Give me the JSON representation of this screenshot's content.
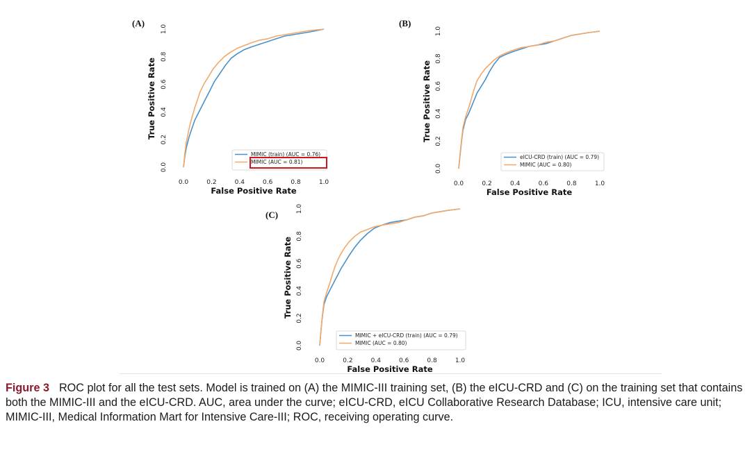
{
  "chart_data": [
    {
      "type": "line",
      "panel": "(A)",
      "xlabel": "False Positive Rate",
      "ylabel": "True Positive Rate",
      "xlim": [
        0,
        1
      ],
      "ylim": [
        0,
        1
      ],
      "xticks": [
        "0.0",
        "0.2",
        "0.4",
        "0.6",
        "0.8",
        "1.0"
      ],
      "yticks": [
        "0.0",
        "0.2",
        "0.4",
        "0.6",
        "0.8",
        "1.0"
      ],
      "grid": false,
      "legend_position": "bottom-right",
      "highlighted_legend_entry": 1,
      "series": [
        {
          "name": "MIMIC (train) (AUC = 0.76)",
          "color": "#4a90c8",
          "x": [
            0,
            0.01,
            0.02,
            0.04,
            0.06,
            0.08,
            0.1,
            0.13,
            0.16,
            0.19,
            0.22,
            0.26,
            0.3,
            0.34,
            0.38,
            0.43,
            0.48,
            0.54,
            0.6,
            0.66,
            0.72,
            0.78,
            0.84,
            0.9,
            0.95,
            1.0
          ],
          "y": [
            0,
            0.08,
            0.14,
            0.22,
            0.28,
            0.34,
            0.38,
            0.44,
            0.5,
            0.56,
            0.62,
            0.68,
            0.74,
            0.79,
            0.82,
            0.85,
            0.87,
            0.89,
            0.91,
            0.93,
            0.95,
            0.96,
            0.97,
            0.98,
            0.99,
            1.0
          ]
        },
        {
          "name": "MIMIC (AUC = 0.81)",
          "color": "#f3a86a",
          "x": [
            0,
            0.01,
            0.02,
            0.04,
            0.06,
            0.08,
            0.1,
            0.12,
            0.15,
            0.18,
            0.21,
            0.25,
            0.29,
            0.33,
            0.38,
            0.43,
            0.48,
            0.54,
            0.6,
            0.66,
            0.72,
            0.78,
            0.84,
            0.9,
            0.95,
            1.0
          ],
          "y": [
            0,
            0.1,
            0.18,
            0.28,
            0.36,
            0.43,
            0.49,
            0.55,
            0.61,
            0.66,
            0.71,
            0.76,
            0.8,
            0.83,
            0.86,
            0.88,
            0.9,
            0.92,
            0.93,
            0.95,
            0.96,
            0.97,
            0.98,
            0.99,
            0.995,
            1.0
          ]
        }
      ]
    },
    {
      "type": "line",
      "panel": "(B)",
      "xlabel": "False Positive Rate",
      "ylabel": "True Positive Rate",
      "xlim": [
        0,
        1
      ],
      "ylim": [
        0,
        1
      ],
      "xticks": [
        "0.0",
        "0.2",
        "0.4",
        "0.6",
        "0.8",
        "1.0"
      ],
      "yticks": [
        "0.0",
        "0.2",
        "0.4",
        "0.6",
        "0.8",
        "1.0"
      ],
      "grid": false,
      "legend_position": "bottom-right",
      "series": [
        {
          "name": "eICU-CRD (train) (AUC = 0.79)",
          "color": "#4a90c8",
          "x": [
            0,
            0.01,
            0.02,
            0.03,
            0.05,
            0.07,
            0.09,
            0.11,
            0.13,
            0.16,
            0.19,
            0.22,
            0.25,
            0.29,
            0.33,
            0.38,
            0.44,
            0.5,
            0.56,
            0.62,
            0.68,
            0.74,
            0.8,
            0.86,
            0.92,
            0.96,
            1.0
          ],
          "y": [
            0,
            0.1,
            0.2,
            0.28,
            0.36,
            0.4,
            0.45,
            0.5,
            0.55,
            0.6,
            0.65,
            0.71,
            0.76,
            0.81,
            0.83,
            0.85,
            0.87,
            0.89,
            0.9,
            0.91,
            0.93,
            0.95,
            0.97,
            0.98,
            0.99,
            0.995,
            1.0
          ]
        },
        {
          "name": "MIMIC (AUC = 0.80)",
          "color": "#f3a86a",
          "x": [
            0,
            0.01,
            0.02,
            0.03,
            0.05,
            0.07,
            0.09,
            0.11,
            0.13,
            0.16,
            0.19,
            0.22,
            0.25,
            0.29,
            0.33,
            0.38,
            0.44,
            0.5,
            0.56,
            0.62,
            0.68,
            0.74,
            0.8,
            0.86,
            0.92,
            0.96,
            1.0
          ],
          "y": [
            0,
            0.11,
            0.21,
            0.3,
            0.38,
            0.44,
            0.51,
            0.58,
            0.64,
            0.69,
            0.73,
            0.76,
            0.79,
            0.82,
            0.84,
            0.86,
            0.88,
            0.89,
            0.9,
            0.92,
            0.93,
            0.95,
            0.97,
            0.98,
            0.99,
            0.995,
            1.0
          ]
        }
      ]
    },
    {
      "type": "line",
      "panel": "(C)",
      "xlabel": "False Positive Rate",
      "ylabel": "True Positive Rate",
      "xlim": [
        0,
        1
      ],
      "ylim": [
        0,
        1
      ],
      "xticks": [
        "0.0",
        "0.2",
        "0.4",
        "0.6",
        "0.8",
        "1.0"
      ],
      "yticks": [
        "0.0",
        "0.2",
        "0.4",
        "0.6",
        "0.8",
        "1.0"
      ],
      "grid": false,
      "legend_position": "bottom-right",
      "series": [
        {
          "name": "MIMIC + eICU-CRD (train) (AUC = 0.79)",
          "color": "#4a90c8",
          "x": [
            0,
            0.01,
            0.02,
            0.03,
            0.05,
            0.07,
            0.09,
            0.11,
            0.13,
            0.15,
            0.18,
            0.21,
            0.25,
            0.29,
            0.34,
            0.39,
            0.44,
            0.5,
            0.56,
            0.62,
            0.68,
            0.74,
            0.8,
            0.86,
            0.92,
            0.96,
            1.0
          ],
          "y": [
            0,
            0.12,
            0.22,
            0.3,
            0.36,
            0.4,
            0.44,
            0.48,
            0.52,
            0.56,
            0.61,
            0.66,
            0.72,
            0.77,
            0.82,
            0.86,
            0.88,
            0.9,
            0.91,
            0.92,
            0.94,
            0.95,
            0.97,
            0.98,
            0.99,
            0.995,
            1.0
          ]
        },
        {
          "name": "MIMIC (AUC = 0.80)",
          "color": "#f3a86a",
          "x": [
            0,
            0.01,
            0.02,
            0.03,
            0.05,
            0.07,
            0.09,
            0.11,
            0.13,
            0.15,
            0.18,
            0.21,
            0.25,
            0.29,
            0.34,
            0.39,
            0.44,
            0.5,
            0.56,
            0.62,
            0.68,
            0.74,
            0.8,
            0.86,
            0.92,
            0.96,
            1.0
          ],
          "y": [
            0,
            0.12,
            0.23,
            0.32,
            0.39,
            0.45,
            0.52,
            0.58,
            0.63,
            0.67,
            0.72,
            0.76,
            0.8,
            0.83,
            0.85,
            0.87,
            0.88,
            0.89,
            0.9,
            0.92,
            0.94,
            0.95,
            0.97,
            0.98,
            0.99,
            0.995,
            1.0
          ]
        }
      ]
    }
  ],
  "caption": {
    "label": "Figure 3",
    "text": "ROC plot for all the test sets. Model is trained on (A) the MIMIC-III training set, (B) the eICU-CRD and (C) on the training set that contains both the MIMIC-III and the eICU-CRD. AUC, area under the curve; eICU-CRD, eICU Collaborative Research Database; ICU, intensive care unit; MIMIC-III, Medical Information Mart for Intensive Care-III; ROC, receiving operating curve."
  },
  "colors": {
    "highlight_box": "#d0151b",
    "caption_label": "#8b1a2b"
  }
}
